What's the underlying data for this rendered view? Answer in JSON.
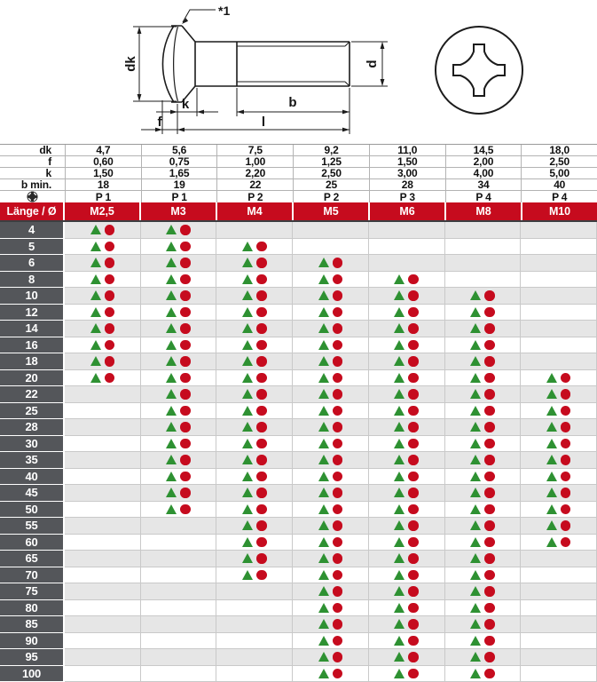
{
  "drawing": {
    "labels": {
      "dk": "dk",
      "f": "f",
      "k": "k",
      "b": "b",
      "l": "l",
      "d": "d"
    },
    "note": "*1",
    "views": [
      "screw-side-view",
      "phillips-head-front-view"
    ]
  },
  "table": {
    "spec_rows": [
      {
        "label": "dk",
        "values": [
          "4,7",
          "5,6",
          "7,5",
          "9,2",
          "11,0",
          "14,5",
          "18,0"
        ]
      },
      {
        "label": "f",
        "values": [
          "0,60",
          "0,75",
          "1,00",
          "1,25",
          "1,50",
          "2,00",
          "2,50"
        ]
      },
      {
        "label": "k",
        "values": [
          "1,50",
          "1,65",
          "2,20",
          "2,50",
          "3,00",
          "4,00",
          "5,00"
        ]
      },
      {
        "label": "b min.",
        "values": [
          "18",
          "19",
          "22",
          "25",
          "28",
          "34",
          "40"
        ]
      },
      {
        "icon": "phillips-icon",
        "values": [
          "P 1",
          "P 1",
          "P 2",
          "P 2",
          "P 3",
          "P 4",
          "P 4"
        ]
      }
    ],
    "header": {
      "label": "Länge / Ø",
      "columns": [
        "M2,5",
        "M3",
        "M4",
        "M5",
        "M6",
        "M8",
        "M10"
      ]
    },
    "rows": [
      {
        "length": "4",
        "marks": [
          1,
          1,
          0,
          0,
          0,
          0,
          0
        ]
      },
      {
        "length": "5",
        "marks": [
          1,
          1,
          1,
          0,
          0,
          0,
          0
        ]
      },
      {
        "length": "6",
        "marks": [
          1,
          1,
          1,
          1,
          0,
          0,
          0
        ]
      },
      {
        "length": "8",
        "marks": [
          1,
          1,
          1,
          1,
          1,
          0,
          0
        ]
      },
      {
        "length": "10",
        "marks": [
          1,
          1,
          1,
          1,
          1,
          1,
          0
        ]
      },
      {
        "length": "12",
        "marks": [
          1,
          1,
          1,
          1,
          1,
          1,
          0
        ]
      },
      {
        "length": "14",
        "marks": [
          1,
          1,
          1,
          1,
          1,
          1,
          0
        ]
      },
      {
        "length": "16",
        "marks": [
          1,
          1,
          1,
          1,
          1,
          1,
          0
        ]
      },
      {
        "length": "18",
        "marks": [
          1,
          1,
          1,
          1,
          1,
          1,
          0
        ]
      },
      {
        "length": "20",
        "marks": [
          1,
          1,
          1,
          1,
          1,
          1,
          1
        ]
      },
      {
        "length": "22",
        "marks": [
          0,
          1,
          1,
          1,
          1,
          1,
          1
        ]
      },
      {
        "length": "25",
        "marks": [
          0,
          1,
          1,
          1,
          1,
          1,
          1
        ]
      },
      {
        "length": "28",
        "marks": [
          0,
          1,
          1,
          1,
          1,
          1,
          1
        ]
      },
      {
        "length": "30",
        "marks": [
          0,
          1,
          1,
          1,
          1,
          1,
          1
        ]
      },
      {
        "length": "35",
        "marks": [
          0,
          1,
          1,
          1,
          1,
          1,
          1
        ]
      },
      {
        "length": "40",
        "marks": [
          0,
          1,
          1,
          1,
          1,
          1,
          1
        ]
      },
      {
        "length": "45",
        "marks": [
          0,
          1,
          1,
          1,
          1,
          1,
          1
        ]
      },
      {
        "length": "50",
        "marks": [
          0,
          1,
          1,
          1,
          1,
          1,
          1
        ]
      },
      {
        "length": "55",
        "marks": [
          0,
          0,
          1,
          1,
          1,
          1,
          1
        ]
      },
      {
        "length": "60",
        "marks": [
          0,
          0,
          1,
          1,
          1,
          1,
          1
        ]
      },
      {
        "length": "65",
        "marks": [
          0,
          0,
          1,
          1,
          1,
          1,
          0
        ]
      },
      {
        "length": "70",
        "marks": [
          0,
          0,
          1,
          1,
          1,
          1,
          0
        ]
      },
      {
        "length": "75",
        "marks": [
          0,
          0,
          0,
          1,
          1,
          1,
          0
        ]
      },
      {
        "length": "80",
        "marks": [
          0,
          0,
          0,
          1,
          1,
          1,
          0
        ]
      },
      {
        "length": "85",
        "marks": [
          0,
          0,
          0,
          1,
          1,
          1,
          0
        ]
      },
      {
        "length": "90",
        "marks": [
          0,
          0,
          0,
          1,
          1,
          1,
          0
        ]
      },
      {
        "length": "95",
        "marks": [
          0,
          0,
          0,
          1,
          1,
          1,
          0
        ]
      },
      {
        "length": "100",
        "marks": [
          0,
          0,
          0,
          1,
          1,
          1,
          0
        ]
      }
    ]
  },
  "markers": {
    "triangle": {
      "name": "triangle-marker",
      "color": "#2e9132"
    },
    "circle": {
      "name": "circle-marker",
      "color": "#c60b1e"
    }
  },
  "colors": {
    "header_red": "#c60b1e",
    "label_gray": "#54565a",
    "stripe_gray": "#e6e6e6"
  }
}
